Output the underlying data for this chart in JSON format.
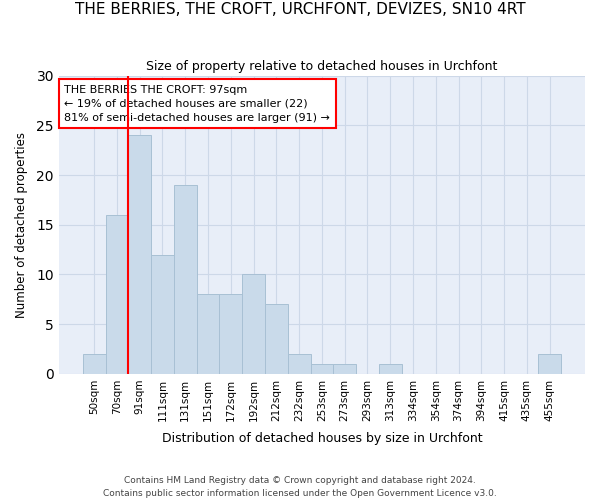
{
  "title": "THE BERRIES, THE CROFT, URCHFONT, DEVIZES, SN10 4RT",
  "subtitle": "Size of property relative to detached houses in Urchfont",
  "xlabel": "Distribution of detached houses by size in Urchfont",
  "ylabel": "Number of detached properties",
  "bar_color": "#c9daea",
  "bar_edge_color": "#a8c0d4",
  "categories": [
    "50sqm",
    "70sqm",
    "91sqm",
    "111sqm",
    "131sqm",
    "151sqm",
    "172sqm",
    "192sqm",
    "212sqm",
    "232sqm",
    "253sqm",
    "273sqm",
    "293sqm",
    "313sqm",
    "334sqm",
    "354sqm",
    "374sqm",
    "394sqm",
    "415sqm",
    "435sqm",
    "455sqm"
  ],
  "values": [
    2,
    16,
    24,
    12,
    19,
    8,
    8,
    10,
    7,
    2,
    1,
    1,
    0,
    1,
    0,
    0,
    0,
    0,
    0,
    0,
    2
  ],
  "ylim": [
    0,
    30
  ],
  "yticks": [
    0,
    5,
    10,
    15,
    20,
    25,
    30
  ],
  "annotation_line_index": 2,
  "annotation_text": "THE BERRIES THE CROFT: 97sqm\n← 19% of detached houses are smaller (22)\n81% of semi-detached houses are larger (91) →",
  "footnote1": "Contains HM Land Registry data © Crown copyright and database right 2024.",
  "footnote2": "Contains public sector information licensed under the Open Government Licence v3.0.",
  "grid_color": "#cdd8e8",
  "background_color": "#e8eef8",
  "title_fontsize": 11,
  "subtitle_fontsize": 9
}
